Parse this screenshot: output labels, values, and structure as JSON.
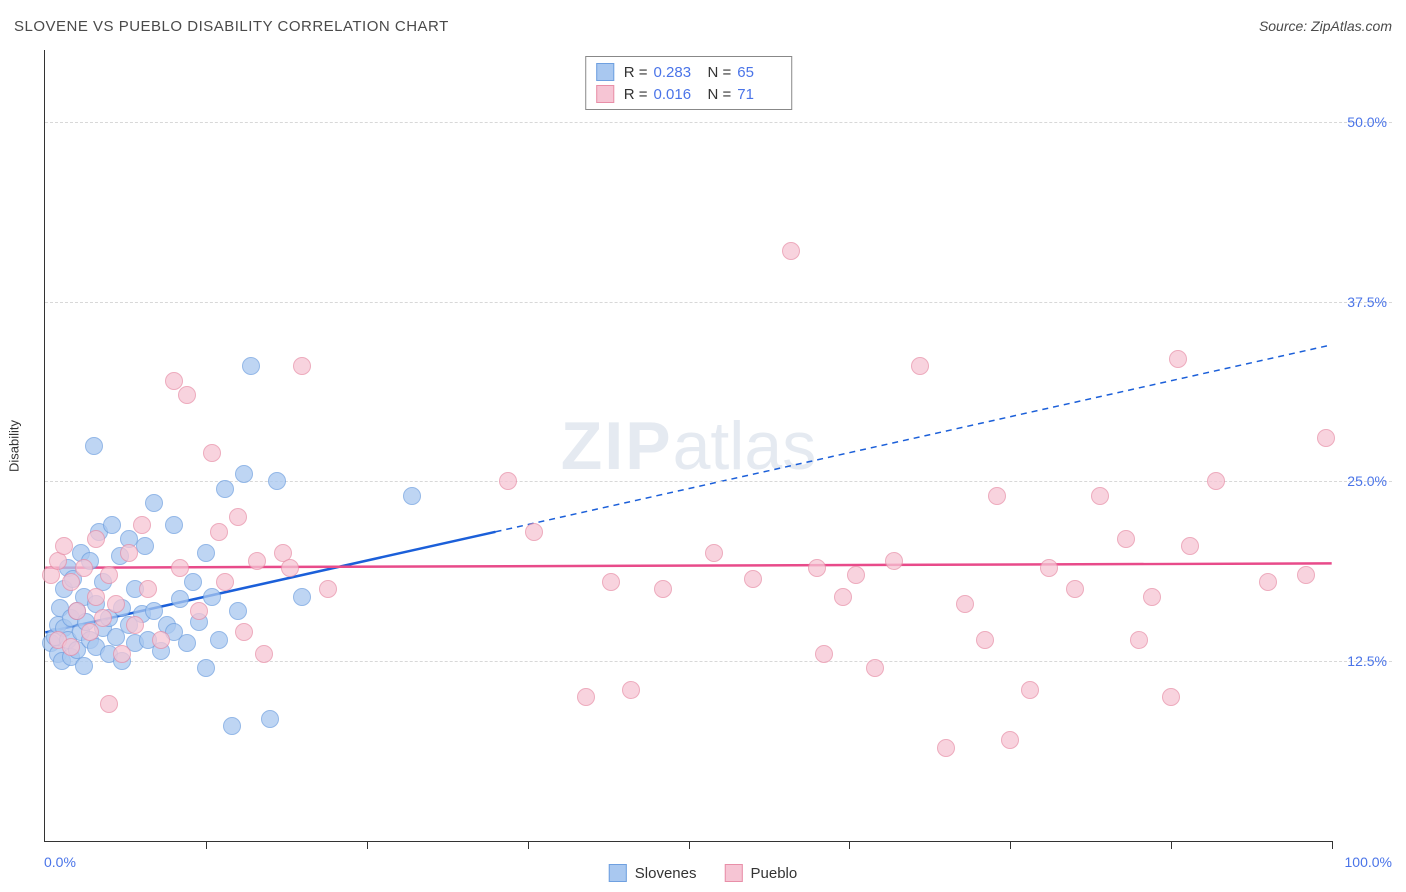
{
  "title": "SLOVENE VS PUEBLO DISABILITY CORRELATION CHART",
  "source": "Source: ZipAtlas.com",
  "watermark_zip": "ZIP",
  "watermark_atlas": "atlas",
  "ylabel": "Disability",
  "x_min_label": "0.0%",
  "x_max_label": "100.0%",
  "chart": {
    "type": "scatter",
    "xlim": [
      0,
      100
    ],
    "ylim": [
      0,
      55
    ],
    "yticks": [
      {
        "v": 12.5,
        "label": "12.5%"
      },
      {
        "v": 25.0,
        "label": "25.0%"
      },
      {
        "v": 37.5,
        "label": "37.5%"
      },
      {
        "v": 50.0,
        "label": "50.0%"
      }
    ],
    "xticks_minor": [
      12.5,
      25,
      37.5,
      50,
      62.5,
      75,
      87.5,
      100
    ],
    "background_color": "#ffffff",
    "grid_color": "#d8d8d8",
    "point_radius": 9,
    "point_fill_opacity": 0.35,
    "series": [
      {
        "name": "Slovenes",
        "fill": "#a9c8f0",
        "stroke": "#6fa0e0",
        "trend_color": "#1b5fd9",
        "r": 0.283,
        "n": 65,
        "trend": {
          "x1": 0,
          "y1": 14.5,
          "x2_solid": 35,
          "y2_solid": 21.5,
          "x2": 100,
          "y2": 34.5
        },
        "points": [
          [
            0.5,
            13.8
          ],
          [
            0.8,
            14.2
          ],
          [
            1.0,
            15.0
          ],
          [
            1.0,
            13.0
          ],
          [
            1.2,
            16.2
          ],
          [
            1.3,
            12.5
          ],
          [
            1.5,
            14.8
          ],
          [
            1.5,
            17.5
          ],
          [
            1.8,
            14.0
          ],
          [
            1.8,
            19.0
          ],
          [
            2.0,
            12.8
          ],
          [
            2.0,
            15.5
          ],
          [
            2.2,
            18.2
          ],
          [
            2.5,
            13.3
          ],
          [
            2.5,
            16.0
          ],
          [
            2.8,
            14.5
          ],
          [
            2.8,
            20.0
          ],
          [
            3.0,
            12.2
          ],
          [
            3.0,
            17.0
          ],
          [
            3.2,
            15.2
          ],
          [
            3.5,
            14.0
          ],
          [
            3.5,
            19.5
          ],
          [
            3.8,
            27.5
          ],
          [
            4.0,
            13.5
          ],
          [
            4.0,
            16.5
          ],
          [
            4.2,
            21.5
          ],
          [
            4.5,
            14.8
          ],
          [
            4.5,
            18.0
          ],
          [
            5.0,
            13.0
          ],
          [
            5.0,
            15.5
          ],
          [
            5.2,
            22.0
          ],
          [
            5.5,
            14.2
          ],
          [
            5.8,
            19.8
          ],
          [
            6.0,
            12.5
          ],
          [
            6.0,
            16.2
          ],
          [
            6.5,
            15.0
          ],
          [
            6.5,
            21.0
          ],
          [
            7.0,
            13.8
          ],
          [
            7.0,
            17.5
          ],
          [
            7.5,
            15.8
          ],
          [
            7.8,
            20.5
          ],
          [
            8.0,
            14.0
          ],
          [
            8.5,
            16.0
          ],
          [
            8.5,
            23.5
          ],
          [
            9.0,
            13.2
          ],
          [
            9.5,
            15.0
          ],
          [
            10.0,
            14.5
          ],
          [
            10.0,
            22.0
          ],
          [
            10.5,
            16.8
          ],
          [
            11.0,
            13.8
          ],
          [
            11.5,
            18.0
          ],
          [
            12.0,
            15.2
          ],
          [
            12.5,
            12.0
          ],
          [
            12.5,
            20.0
          ],
          [
            13.0,
            17.0
          ],
          [
            13.5,
            14.0
          ],
          [
            14.0,
            24.5
          ],
          [
            14.5,
            8.0
          ],
          [
            15.0,
            16.0
          ],
          [
            15.5,
            25.5
          ],
          [
            16.0,
            33.0
          ],
          [
            17.5,
            8.5
          ],
          [
            18.0,
            25.0
          ],
          [
            20.0,
            17.0
          ],
          [
            28.5,
            24.0
          ]
        ]
      },
      {
        "name": "Pueblo",
        "fill": "#f6c5d4",
        "stroke": "#e88fa8",
        "trend_color": "#e84b8a",
        "r": 0.016,
        "n": 71,
        "trend": {
          "x1": 0,
          "y1": 19.0,
          "x2_solid": 100,
          "y2_solid": 19.3,
          "x2": 100,
          "y2": 19.3
        },
        "points": [
          [
            0.5,
            18.5
          ],
          [
            1.0,
            19.5
          ],
          [
            1.0,
            14.0
          ],
          [
            1.5,
            20.5
          ],
          [
            2.0,
            13.5
          ],
          [
            2.0,
            18.0
          ],
          [
            2.5,
            16.0
          ],
          [
            3.0,
            19.0
          ],
          [
            3.5,
            14.5
          ],
          [
            4.0,
            17.0
          ],
          [
            4.0,
            21.0
          ],
          [
            4.5,
            15.5
          ],
          [
            5.0,
            9.5
          ],
          [
            5.0,
            18.5
          ],
          [
            5.5,
            16.5
          ],
          [
            6.0,
            13.0
          ],
          [
            6.5,
            20.0
          ],
          [
            7.0,
            15.0
          ],
          [
            7.5,
            22.0
          ],
          [
            8.0,
            17.5
          ],
          [
            9.0,
            14.0
          ],
          [
            10.0,
            32.0
          ],
          [
            10.5,
            19.0
          ],
          [
            11.0,
            31.0
          ],
          [
            12.0,
            16.0
          ],
          [
            13.0,
            27.0
          ],
          [
            13.5,
            21.5
          ],
          [
            14.0,
            18.0
          ],
          [
            15.0,
            22.5
          ],
          [
            15.5,
            14.5
          ],
          [
            16.5,
            19.5
          ],
          [
            17.0,
            13.0
          ],
          [
            18.5,
            20.0
          ],
          [
            19.0,
            19.0
          ],
          [
            20.0,
            33.0
          ],
          [
            22.0,
            17.5
          ],
          [
            36.0,
            25.0
          ],
          [
            38.0,
            21.5
          ],
          [
            42.0,
            10.0
          ],
          [
            44.0,
            18.0
          ],
          [
            45.5,
            10.5
          ],
          [
            48.0,
            17.5
          ],
          [
            52.0,
            20.0
          ],
          [
            55.0,
            18.2
          ],
          [
            58.0,
            41.0
          ],
          [
            60.0,
            19.0
          ],
          [
            60.5,
            13.0
          ],
          [
            62.0,
            17.0
          ],
          [
            63.0,
            18.5
          ],
          [
            64.5,
            12.0
          ],
          [
            66.0,
            19.5
          ],
          [
            68.0,
            33.0
          ],
          [
            70.0,
            6.5
          ],
          [
            71.5,
            16.5
          ],
          [
            73.0,
            14.0
          ],
          [
            74.0,
            24.0
          ],
          [
            75.0,
            7.0
          ],
          [
            76.5,
            10.5
          ],
          [
            78.0,
            19.0
          ],
          [
            80.0,
            17.5
          ],
          [
            82.0,
            24.0
          ],
          [
            84.0,
            21.0
          ],
          [
            85.0,
            14.0
          ],
          [
            86.0,
            17.0
          ],
          [
            87.5,
            10.0
          ],
          [
            88.0,
            33.5
          ],
          [
            89.0,
            20.5
          ],
          [
            91.0,
            25.0
          ],
          [
            95.0,
            18.0
          ],
          [
            98.0,
            18.5
          ],
          [
            99.5,
            28.0
          ]
        ]
      }
    ]
  }
}
